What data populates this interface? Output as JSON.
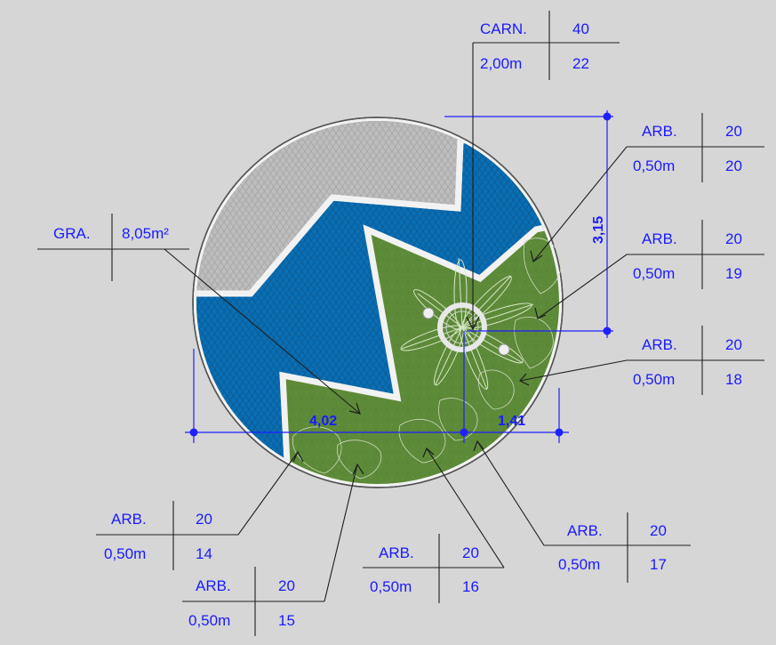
{
  "colors": {
    "background": "#d6d6d6",
    "paving_gray": "#bdbdbd",
    "paving_blue": "#0a6eb4",
    "grass": "#5d8a38",
    "outline": "#f2f2f2",
    "label_text": "#1a1aff",
    "dimension_line": "#1f1fff",
    "leader_line": "#1e1e1e"
  },
  "tags": {
    "carn": {
      "code": "CARN.",
      "size": "2,00m",
      "count": "40",
      "number": "22"
    },
    "gra": {
      "code": "GRA.",
      "area": "8,05m²"
    },
    "arb20": {
      "code": "ARB.",
      "size": "0,50m",
      "count": "20",
      "number": "20"
    },
    "arb19": {
      "code": "ARB.",
      "size": "0,50m",
      "count": "20",
      "number": "19"
    },
    "arb18": {
      "code": "ARB.",
      "size": "0,50m",
      "count": "20",
      "number": "18"
    },
    "arb17": {
      "code": "ARB.",
      "size": "0,50m",
      "count": "20",
      "number": "17"
    },
    "arb16": {
      "code": "ARB.",
      "size": "0,50m",
      "count": "20",
      "number": "16"
    },
    "arb15": {
      "code": "ARB.",
      "size": "0,50m",
      "count": "20",
      "number": "15"
    },
    "arb14": {
      "code": "ARB.",
      "size": "0,50m",
      "count": "20",
      "number": "14"
    }
  },
  "dimensions": {
    "horizontal_main": "4,02",
    "horizontal_small": "1,41",
    "vertical": "3,15"
  }
}
